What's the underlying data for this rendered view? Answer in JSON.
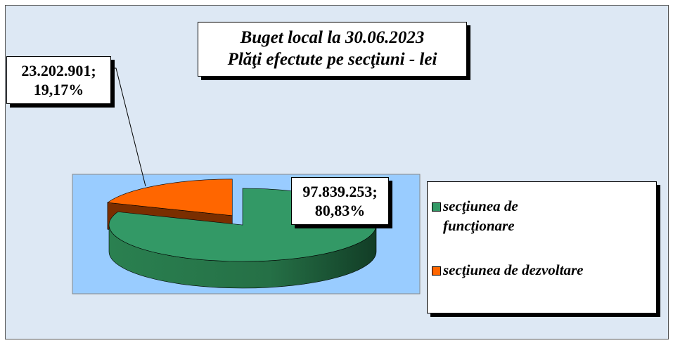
{
  "chart_data": {
    "type": "pie3d",
    "title": "Buget local la 30.06.2023",
    "subtitle": "Plăţi efectute pe secţiuni - lei",
    "categories": [
      "secţiunea de funcţionare",
      "secţiunea de dezvoltare"
    ],
    "values": [
      97839253,
      23202901
    ],
    "value_labels": [
      [
        "97.839.253;",
        "80,83%"
      ],
      [
        "23.202.901;",
        "19,17%"
      ]
    ],
    "colors": [
      "#339966",
      "#ff6600"
    ],
    "legend": "right"
  }
}
